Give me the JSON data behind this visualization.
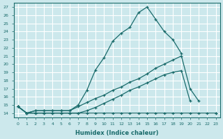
{
  "xlabel": "Humidex (Indice chaleur)",
  "bg_color": "#cce8ec",
  "grid_color": "#ffffff",
  "line_color": "#1a6b6b",
  "xlim": [
    -0.5,
    23.5
  ],
  "ylim": [
    13.5,
    27.5
  ],
  "xticks": [
    0,
    1,
    2,
    3,
    4,
    5,
    6,
    7,
    8,
    9,
    10,
    11,
    12,
    13,
    14,
    15,
    16,
    17,
    18,
    19,
    20,
    21,
    22,
    23
  ],
  "yticks": [
    14,
    15,
    16,
    17,
    18,
    19,
    20,
    21,
    22,
    23,
    24,
    25,
    26,
    27
  ],
  "lines": [
    {
      "x": [
        0,
        1,
        2,
        3,
        4,
        5,
        6,
        7,
        8,
        9,
        10,
        11,
        12,
        13,
        14,
        15,
        16,
        17,
        18,
        19
      ],
      "y": [
        14.8,
        14.0,
        14.3,
        14.3,
        14.3,
        14.3,
        14.3,
        15.0,
        16.8,
        19.3,
        20.8,
        22.8,
        23.8,
        24.5,
        26.3,
        27.0,
        25.5,
        24.0,
        23.0,
        21.3
      ]
    },
    {
      "x": [
        0,
        1,
        2,
        3,
        4,
        5,
        6,
        7,
        8,
        9,
        10,
        11,
        12,
        13,
        14,
        15,
        16,
        17,
        18,
        19,
        20,
        21
      ],
      "y": [
        14.8,
        14.0,
        14.3,
        14.3,
        14.3,
        14.3,
        14.3,
        14.8,
        15.3,
        15.8,
        16.2,
        16.8,
        17.2,
        17.8,
        18.2,
        18.8,
        19.5,
        20.0,
        20.5,
        21.0,
        17.0,
        15.5
      ]
    },
    {
      "x": [
        0,
        1,
        2,
        3,
        4,
        5,
        6,
        7,
        8,
        9,
        10,
        11,
        12,
        13,
        14,
        15,
        16,
        17,
        18,
        19,
        20,
        21,
        22,
        23
      ],
      "y": [
        14.8,
        14.0,
        14.0,
        14.0,
        14.0,
        14.0,
        14.0,
        14.0,
        14.0,
        14.0,
        14.0,
        14.0,
        14.0,
        14.0,
        14.0,
        14.0,
        14.0,
        14.0,
        14.0,
        14.0,
        14.0,
        14.0,
        14.0,
        14.0
      ]
    },
    {
      "x": [
        0,
        1,
        2,
        3,
        4,
        5,
        6,
        7,
        8,
        9,
        10,
        11,
        12,
        13,
        14,
        15,
        16,
        17,
        18,
        19,
        20,
        21,
        22,
        23
      ],
      "y": [
        14.8,
        14.0,
        14.0,
        14.0,
        14.0,
        14.0,
        14.0,
        14.0,
        14.3,
        14.7,
        15.2,
        15.7,
        16.2,
        16.8,
        17.2,
        17.7,
        18.2,
        18.7,
        19.0,
        19.2,
        15.5,
        null,
        null,
        14.0
      ]
    }
  ]
}
